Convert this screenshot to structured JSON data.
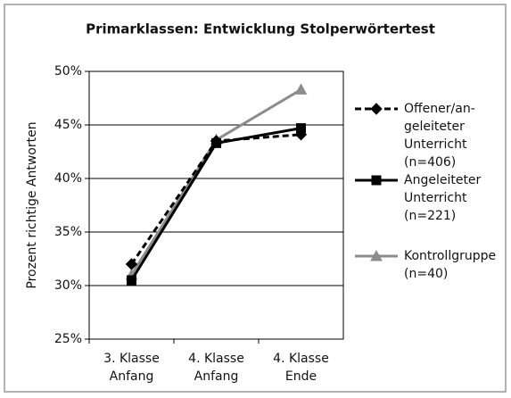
{
  "chart_data": {
    "type": "line",
    "title": "Primarklassen: Entwicklung Stolperwörtertest",
    "y_label": "Prozent richtige Antworten",
    "categories": [
      "3. Klasse\nAnfang",
      "4. Klasse\nAnfang",
      "4. Klasse\nEnde"
    ],
    "series": [
      {
        "name": "Offener/an-\ngeleiteter\nUnterricht\n(n=406)",
        "color": "#000000",
        "dash": true,
        "marker": "diamond",
        "values": [
          32.0,
          43.5,
          44.1
        ]
      },
      {
        "name": "Angeleiteter\nUnterricht\n(n=221)",
        "color": "#000000",
        "dash": false,
        "marker": "square",
        "values": [
          30.5,
          43.3,
          44.7
        ]
      },
      {
        "name": "Kontrollgruppe\n(n=40)",
        "color": "#8c8c8c",
        "dash": false,
        "marker": "triangle",
        "values": [
          31.0,
          43.6,
          48.3
        ]
      }
    ],
    "ylim": [
      25,
      50
    ],
    "yticks": [
      {
        "value": 25,
        "label": "25%"
      },
      {
        "value": 30,
        "label": "30%"
      },
      {
        "value": 35,
        "label": "35%"
      },
      {
        "value": 40,
        "label": "40%"
      },
      {
        "value": 45,
        "label": "45%"
      },
      {
        "value": 50,
        "label": "50%"
      }
    ],
    "grid": true,
    "legend": "right"
  }
}
